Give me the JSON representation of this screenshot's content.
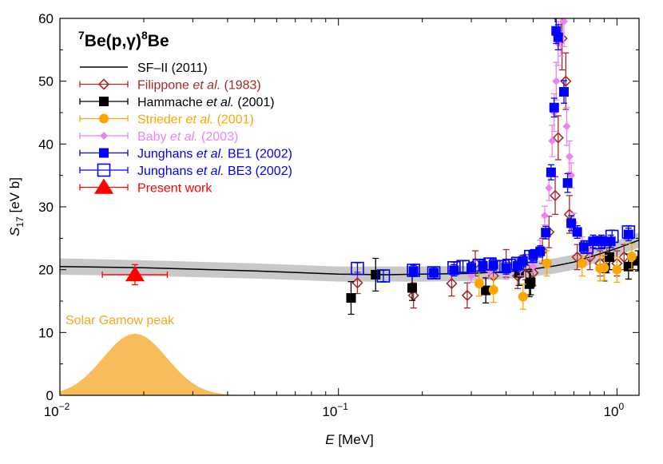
{
  "chart_data": {
    "type": "scatter",
    "title": "7Be(p,γ)8Be",
    "title_parts": {
      "sup1": "7",
      "main": "Be(p,",
      "gamma": "γ",
      "close": ")",
      "sup2": "8",
      "end": "Be"
    },
    "xlabel": {
      "var": "E",
      "unit": " [MeV]"
    },
    "ylabel": {
      "var": "S",
      "sub": "17",
      "unit": " [eV b]"
    },
    "xscale": "log",
    "xlim": [
      0.01,
      1.2
    ],
    "ylim": [
      0,
      60
    ],
    "x_ticks": [
      {
        "value": 0.01,
        "base": "10",
        "exp": "−2"
      },
      {
        "value": 0.1,
        "base": "10",
        "exp": "−1"
      },
      {
        "value": 1,
        "base": "10",
        "exp": "0"
      }
    ],
    "y_ticks": [
      "0",
      "10",
      "20",
      "30",
      "40",
      "50",
      "60"
    ],
    "band": {
      "x": [
        0.01,
        0.02,
        0.05,
        0.1,
        0.2,
        0.3,
        0.4,
        0.5,
        0.6,
        0.7,
        0.8,
        1.0,
        1.2
      ],
      "upper": [
        21.8,
        21.5,
        21.0,
        20.5,
        20.5,
        20.6,
        20.9,
        21.3,
        21.8,
        22.4,
        23.2,
        24.6,
        25.9
      ],
      "lower": [
        19.2,
        19.0,
        18.6,
        18.1,
        18.1,
        18.2,
        18.5,
        18.9,
        19.4,
        20.0,
        20.8,
        22.2,
        23.5
      ]
    },
    "fit_line": {
      "name": "SF–II (2011)",
      "x": [
        0.01,
        0.02,
        0.05,
        0.1,
        0.15,
        0.2,
        0.3,
        0.4,
        0.5,
        0.6,
        0.7,
        0.8,
        1.0,
        1.2
      ],
      "y": [
        20.5,
        20.3,
        19.8,
        19.3,
        19.2,
        19.3,
        19.4,
        19.7,
        20.1,
        20.6,
        21.2,
        22.0,
        23.4,
        24.7
      ]
    },
    "series": [
      {
        "name": "Filippone",
        "legend": {
          "pre": "Filippone ",
          "italic": "et al.",
          "post": " (1983)"
        },
        "color": "#a52a2a",
        "marker": "diamond-open",
        "points": [
          [
            0.117,
            17.9,
            1.7
          ],
          [
            0.186,
            15.9,
            2.0
          ],
          [
            0.255,
            17.8,
            2.0
          ],
          [
            0.29,
            15.9,
            2.0
          ],
          [
            0.31,
            21.0,
            2.0
          ],
          [
            0.36,
            19.0,
            2.0
          ],
          [
            0.4,
            21.0,
            2.2
          ],
          [
            0.44,
            19.0,
            2.0
          ],
          [
            0.47,
            20.4,
            2.0
          ],
          [
            0.5,
            19.5,
            2.0
          ],
          [
            0.54,
            23.0,
            2.0
          ],
          [
            0.57,
            26.0,
            2.5
          ],
          [
            0.6,
            31.8,
            3.0
          ],
          [
            0.615,
            41.0,
            3.5
          ],
          [
            0.635,
            56.8,
            5.0
          ],
          [
            0.655,
            50.0,
            4.5
          ],
          [
            0.675,
            28.8,
            3.0
          ],
          [
            0.72,
            22.0,
            2.0
          ],
          [
            0.8,
            22.0,
            2.0
          ],
          [
            0.87,
            21.0,
            2.0
          ],
          [
            0.92,
            21.5,
            2.0
          ],
          [
            1.0,
            21.0,
            2.0
          ],
          [
            1.06,
            22.0,
            2.0
          ]
        ]
      },
      {
        "name": "Hammache",
        "legend": {
          "pre": "Hammache ",
          "italic": "et al.",
          "post": " (2001)"
        },
        "color": "#000000",
        "marker": "square",
        "points": [
          [
            0.111,
            15.5,
            2.6
          ],
          [
            0.136,
            19.2,
            2.6
          ],
          [
            0.184,
            17.1,
            2.0
          ],
          [
            0.338,
            16.7,
            2.0
          ],
          [
            0.445,
            19.5,
            2.0
          ],
          [
            0.485,
            17.7,
            2.0
          ],
          [
            0.49,
            18.0,
            2.0
          ],
          [
            0.9,
            20.2,
            2.0
          ],
          [
            0.94,
            22.0,
            2.0
          ],
          [
            1.1,
            20.5,
            2.0
          ],
          [
            1.19,
            21.4,
            1.6
          ]
        ]
      },
      {
        "name": "Strieder",
        "legend": {
          "pre": "Strieder ",
          "italic": "et al.",
          "post": " (2001)"
        },
        "color": "#ffa500",
        "marker": "circle",
        "points": [
          [
            0.32,
            17.8,
            2.0
          ],
          [
            0.36,
            16.8,
            2.0
          ],
          [
            0.46,
            15.7,
            2.0
          ],
          [
            0.56,
            21.0,
            2.0
          ],
          [
            0.75,
            21.0,
            2.0
          ],
          [
            0.87,
            20.2,
            2.0
          ],
          [
            0.9,
            20.3,
            2.0
          ],
          [
            1.0,
            20.0,
            2.0
          ],
          [
            1.13,
            22.1,
            2.0
          ]
        ]
      },
      {
        "name": "Baby",
        "legend": {
          "pre": "Baby ",
          "italic": "et al.",
          "post": " (2003)"
        },
        "color": "#ee82ee",
        "marker": "diamond",
        "points": [
          [
            0.3,
            19.0,
            1.0
          ],
          [
            0.35,
            19.8,
            1.0
          ],
          [
            0.4,
            19.5,
            1.0
          ],
          [
            0.45,
            20.0,
            1.0
          ],
          [
            0.5,
            20.5,
            1.0
          ],
          [
            0.53,
            23.5,
            1.2
          ],
          [
            0.55,
            28.6,
            1.5
          ],
          [
            0.57,
            33.0,
            2.0
          ],
          [
            0.585,
            40.5,
            2.5
          ],
          [
            0.595,
            45.0,
            3.0
          ],
          [
            0.605,
            50.0,
            3.0
          ],
          [
            0.615,
            56.0,
            3.5
          ],
          [
            0.628,
            57.5,
            3.5
          ],
          [
            0.645,
            59.5,
            4.0
          ],
          [
            0.66,
            42.8,
            3.0
          ],
          [
            0.675,
            38.0,
            2.5
          ],
          [
            0.685,
            35.0,
            2.0
          ],
          [
            0.7,
            27.5,
            1.5
          ],
          [
            0.75,
            24.0,
            1.2
          ],
          [
            0.8,
            23.0,
            1.2
          ]
        ]
      },
      {
        "name": "Junghans BE1",
        "legend": {
          "pre": "Junghans ",
          "italic": "et al.",
          "post": " BE1 (2002)"
        },
        "color": "#0000ff",
        "marker": "square",
        "points": [
          [
            0.186,
            19.8,
            0.9
          ],
          [
            0.22,
            19.5,
            0.9
          ],
          [
            0.26,
            19.9,
            0.9
          ],
          [
            0.3,
            20.3,
            0.9
          ],
          [
            0.33,
            20.6,
            0.9
          ],
          [
            0.36,
            20.8,
            0.9
          ],
          [
            0.4,
            20.2,
            0.9
          ],
          [
            0.44,
            20.6,
            0.9
          ],
          [
            0.46,
            21.4,
            0.9
          ],
          [
            0.5,
            22.3,
            0.9
          ],
          [
            0.53,
            22.9,
            0.9
          ],
          [
            0.555,
            25.9,
            1.0
          ],
          [
            0.58,
            35.5,
            1.2
          ],
          [
            0.595,
            45.8,
            1.5
          ],
          [
            0.605,
            58.0,
            2.0
          ],
          [
            0.615,
            57.0,
            2.0
          ],
          [
            0.645,
            48.3,
            1.8
          ],
          [
            0.665,
            33.8,
            1.5
          ],
          [
            0.685,
            27.4,
            1.2
          ],
          [
            0.72,
            26.0,
            1.0
          ],
          [
            0.76,
            23.6,
            1.0
          ],
          [
            0.82,
            24.5,
            1.0
          ],
          [
            0.88,
            24.5,
            1.0
          ],
          [
            0.95,
            24.5,
            1.0
          ],
          [
            1.1,
            25.6,
            1.0
          ]
        ]
      },
      {
        "name": "Junghans BE3",
        "legend": {
          "pre": "Junghans ",
          "italic": "et al.",
          "post": " BE3 (2002)"
        },
        "color": "#0000ff",
        "marker": "square-open",
        "points": [
          [
            0.117,
            20.2,
            0.9
          ],
          [
            0.145,
            19.0,
            0.9
          ],
          [
            0.186,
            19.9,
            0.9
          ],
          [
            0.22,
            19.5,
            0.9
          ],
          [
            0.26,
            20.3,
            0.9
          ],
          [
            0.28,
            20.5,
            0.9
          ],
          [
            0.32,
            20.7,
            0.9
          ],
          [
            0.35,
            20.9,
            0.9
          ],
          [
            0.38,
            20.5,
            0.9
          ],
          [
            0.41,
            20.7,
            0.9
          ],
          [
            0.44,
            21.0,
            0.9
          ],
          [
            0.49,
            22.1,
            0.9
          ],
          [
            0.78,
            23.6,
            1.0
          ],
          [
            0.86,
            24.3,
            1.0
          ],
          [
            0.96,
            25.3,
            1.0
          ],
          [
            1.1,
            26.0,
            1.0
          ]
        ]
      },
      {
        "name": "Present",
        "legend": {
          "pre": "Present work",
          "italic": "",
          "post": ""
        },
        "color": "#ff0000",
        "marker": "triangle",
        "points": [
          [
            0.0186,
            19.2,
            1.6
          ]
        ],
        "xerr": [
          [
            0.0142,
            0.0243
          ]
        ]
      }
    ],
    "gamow": {
      "label": "Solar Gamow peak",
      "color": "#f5a623",
      "peak_x": 0.0186,
      "peak_y": 9.8,
      "sigma_log10": 0.115
    }
  }
}
